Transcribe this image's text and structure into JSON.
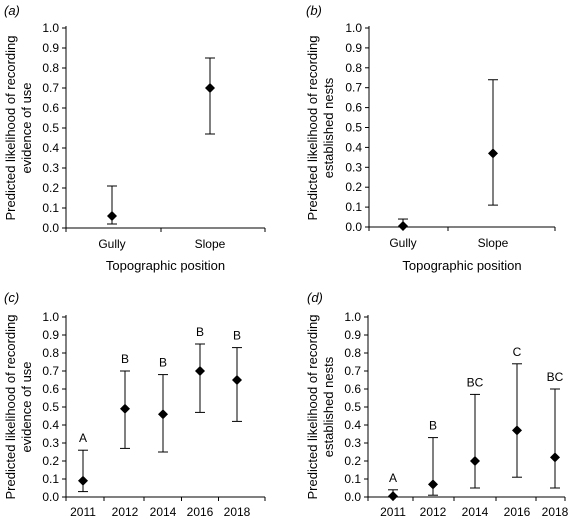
{
  "chart_data": [
    {
      "type": "scatter",
      "panel_label": "(a)",
      "categories": [
        "Gully",
        "Slope"
      ],
      "values": [
        0.06,
        0.7
      ],
      "lower": [
        0.02,
        0.47
      ],
      "upper": [
        0.21,
        0.85
      ],
      "letters": [],
      "xlabel": "Topographic position",
      "ylabel": [
        "Predicted likelihood of recording",
        "evidence of use"
      ],
      "ylim": [
        0,
        1
      ],
      "yticks": [
        "0.0",
        "0.1",
        "0.2",
        "0.3",
        "0.4",
        "0.5",
        "0.6",
        "0.7",
        "0.8",
        "0.9",
        "1.0"
      ],
      "grid": false
    },
    {
      "type": "scatter",
      "panel_label": "(b)",
      "categories": [
        "Gully",
        "Slope"
      ],
      "values": [
        0.005,
        0.37
      ],
      "lower": [
        0.0,
        0.11
      ],
      "upper": [
        0.04,
        0.74
      ],
      "letters": [],
      "xlabel": "Topographic position",
      "ylabel": [
        "Predicted likelihood of recording",
        "established nests"
      ],
      "ylim": [
        0,
        1
      ],
      "yticks": [
        "0.0",
        "0.1",
        "0.2",
        "0.3",
        "0.4",
        "0.5",
        "0.6",
        "0.7",
        "0.8",
        "0.9",
        "1.0"
      ],
      "grid": false
    },
    {
      "type": "scatter",
      "panel_label": "(c)",
      "categories": [
        "2011",
        "2012",
        "2014",
        "2016",
        "2018"
      ],
      "values": [
        0.09,
        0.49,
        0.46,
        0.7,
        0.65
      ],
      "lower": [
        0.03,
        0.27,
        0.25,
        0.47,
        0.42
      ],
      "upper": [
        0.26,
        0.7,
        0.68,
        0.85,
        0.83
      ],
      "letters": [
        "A",
        "B",
        "B",
        "B",
        "B"
      ],
      "xlabel": "",
      "ylabel": [
        "Predicted likelihood of recording",
        "evidence of use"
      ],
      "ylim": [
        0,
        1
      ],
      "yticks": [
        "0.0",
        "0.1",
        "0.2",
        "0.3",
        "0.4",
        "0.5",
        "0.6",
        "0.7",
        "0.8",
        "0.9",
        "1.0"
      ],
      "grid": false
    },
    {
      "type": "scatter",
      "panel_label": "(d)",
      "categories": [
        "2011",
        "2012",
        "2014",
        "2016",
        "2018"
      ],
      "values": [
        0.005,
        0.07,
        0.2,
        0.37,
        0.22
      ],
      "lower": [
        0.0,
        0.01,
        0.05,
        0.11,
        0.05
      ],
      "upper": [
        0.04,
        0.33,
        0.57,
        0.74,
        0.6
      ],
      "letters": [
        "A",
        "B",
        "BC",
        "C",
        "BC"
      ],
      "xlabel": "",
      "ylabel": [
        "Predicted likelihood of recording",
        "established nests"
      ],
      "ylim": [
        0,
        1
      ],
      "yticks": [
        "0.0",
        "0.1",
        "0.2",
        "0.3",
        "0.4",
        "0.5",
        "0.6",
        "0.7",
        "0.8",
        "0.9",
        "1.0"
      ],
      "grid": false
    }
  ]
}
